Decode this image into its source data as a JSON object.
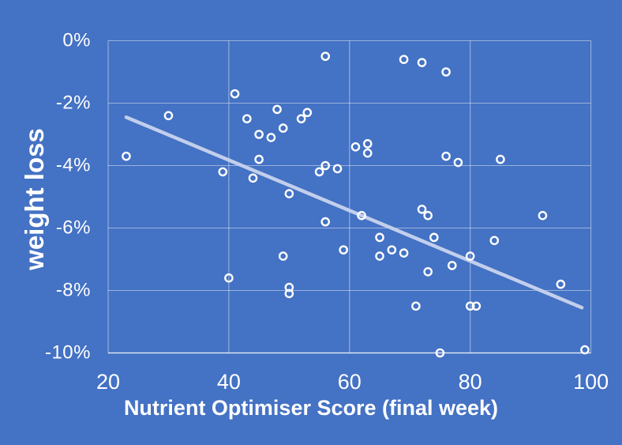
{
  "chart_data": {
    "type": "scatter",
    "title": "",
    "xlabel": "Nutrient Optimiser Score (final week)",
    "ylabel": "weight loss",
    "xlim": [
      20,
      100
    ],
    "ylim": [
      -10,
      0
    ],
    "xticks": [
      20,
      40,
      60,
      80,
      100
    ],
    "xtick_labels": [
      "20",
      "40",
      "60",
      "80",
      "100"
    ],
    "yticks": [
      0,
      -2,
      -4,
      -6,
      -8,
      -10
    ],
    "ytick_labels": [
      "0%",
      "-2%",
      "-4%",
      "-6%",
      "-8%",
      "-10%"
    ],
    "grid": true,
    "legend": false,
    "marker_style": "open-circle",
    "points": [
      [
        23,
        -3.7
      ],
      [
        30,
        -2.4
      ],
      [
        39,
        -4.2
      ],
      [
        40,
        -7.6
      ],
      [
        41,
        -1.7
      ],
      [
        43,
        -2.5
      ],
      [
        44,
        -4.4
      ],
      [
        45,
        -3.0
      ],
      [
        45,
        -3.8
      ],
      [
        47,
        -3.1
      ],
      [
        48,
        -2.2
      ],
      [
        49,
        -2.8
      ],
      [
        49,
        -6.9
      ],
      [
        50,
        -4.9
      ],
      [
        50,
        -7.9
      ],
      [
        50,
        -8.1
      ],
      [
        52,
        -2.5
      ],
      [
        53,
        -2.3
      ],
      [
        55,
        -4.2
      ],
      [
        56,
        -0.5
      ],
      [
        56,
        -4.0
      ],
      [
        56,
        -5.8
      ],
      [
        58,
        -4.1
      ],
      [
        59,
        -6.7
      ],
      [
        61,
        -3.4
      ],
      [
        62,
        -5.6
      ],
      [
        63,
        -3.3
      ],
      [
        63,
        -3.6
      ],
      [
        65,
        -6.3
      ],
      [
        65,
        -6.9
      ],
      [
        67,
        -6.7
      ],
      [
        69,
        -0.6
      ],
      [
        69,
        -6.8
      ],
      [
        71,
        -8.5
      ],
      [
        72,
        -0.7
      ],
      [
        72,
        -5.4
      ],
      [
        73,
        -5.6
      ],
      [
        73,
        -7.4
      ],
      [
        74,
        -6.3
      ],
      [
        75,
        -10.0
      ],
      [
        76,
        -1.0
      ],
      [
        76,
        -3.7
      ],
      [
        77,
        -7.2
      ],
      [
        78,
        -3.9
      ],
      [
        80,
        -6.9
      ],
      [
        80,
        -8.5
      ],
      [
        81,
        -8.5
      ],
      [
        84,
        -6.4
      ],
      [
        85,
        -3.8
      ],
      [
        92,
        -5.6
      ],
      [
        95,
        -7.8
      ],
      [
        99,
        -9.9
      ]
    ],
    "trendline": {
      "x1": 23,
      "y1": -2.45,
      "x2": 98.5,
      "y2": -8.55
    }
  },
  "colors": {
    "background": "#4472C4",
    "gridline": "rgba(255,255,255,0.45)",
    "axis_line": "rgba(255,255,255,0.8)",
    "marker": "#FFFFFF",
    "trendline": "#C2CFEC",
    "text": "#FFFFFF"
  }
}
